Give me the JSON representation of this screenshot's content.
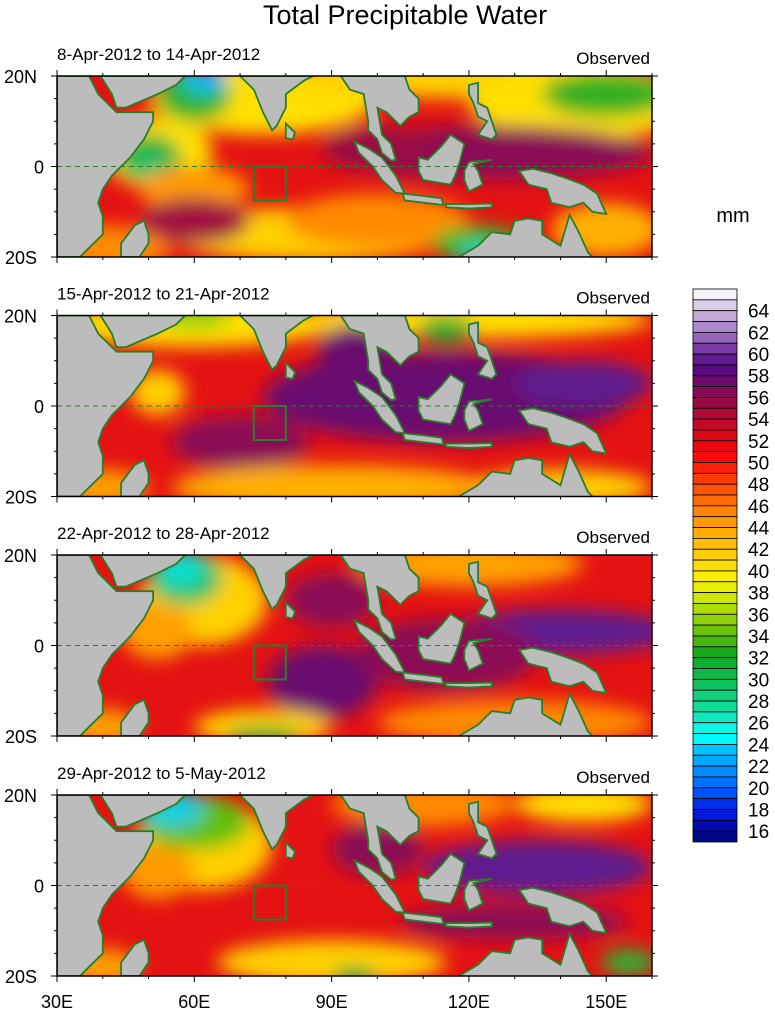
{
  "title": "Total Precipitable Water",
  "units": "mm",
  "panels": [
    {
      "date_range": "8-Apr-2012 to 14-Apr-2012",
      "label": "Observed"
    },
    {
      "date_range": "15-Apr-2012 to 21-Apr-2012",
      "label": "Observed"
    },
    {
      "date_range": "22-Apr-2012 to 28-Apr-2012",
      "label": "Observed"
    },
    {
      "date_range": "29-Apr-2012 to 5-May-2012",
      "label": "Observed"
    }
  ],
  "y_ticks": [
    "20N",
    "0",
    "20S"
  ],
  "x_ticks": [
    "30E",
    "60E",
    "90E",
    "120E",
    "150E"
  ],
  "colorbar": {
    "labels": [
      "64",
      "62",
      "60",
      "58",
      "56",
      "54",
      "52",
      "50",
      "48",
      "46",
      "44",
      "42",
      "40",
      "38",
      "36",
      "34",
      "32",
      "30",
      "28",
      "26",
      "24",
      "22",
      "20",
      "18",
      "16"
    ],
    "colors": [
      "#f6f4f8",
      "#dccde6",
      "#c3a9d6",
      "#ad8ac9",
      "#9566b9",
      "#7a3aa6",
      "#5e1a8e",
      "#5a0a80",
      "#6e0a6a",
      "#860a58",
      "#9a0a45",
      "#ae0a35",
      "#c40a28",
      "#d80a18",
      "#ec0a10",
      "#ff0a0a",
      "#ff2008",
      "#ff3a05",
      "#ff5405",
      "#ff6c05",
      "#ff8405",
      "#ff9a05",
      "#ffae05",
      "#ffbe05",
      "#ffcc05",
      "#ffdc05",
      "#ffec05",
      "#e8ee05",
      "#ccea05",
      "#aedc08",
      "#90d00a",
      "#6cc20a",
      "#48b410",
      "#18aa18",
      "#10ae30",
      "#10b848",
      "#10c462",
      "#10d07c",
      "#10dc98",
      "#10e8c0",
      "#10f4e4",
      "#00f8ff",
      "#00c4ff",
      "#00a8ff",
      "#008cff",
      "#0070ff",
      "#0050ff",
      "#0030e8",
      "#0018d8",
      "#0008b0",
      "#000888"
    ]
  },
  "colors": {
    "land": "#bcbcbc",
    "coast": "#2a7d2a",
    "base_field": "#e41212"
  }
}
